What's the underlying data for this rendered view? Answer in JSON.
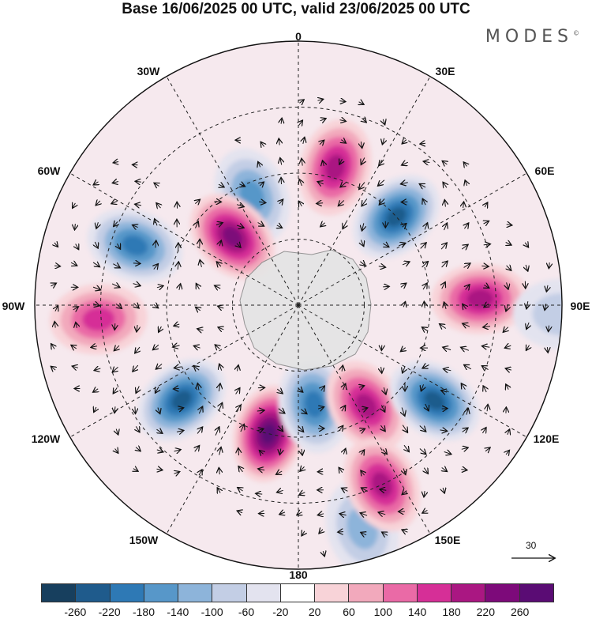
{
  "title": "Base 16/06/2025 00 UTC, valid 23/06/2025 00 UTC",
  "brand": "MODES",
  "brand_mark": "©",
  "longitude_labels": [
    "0",
    "30E",
    "60E",
    "90E",
    "120E",
    "150E",
    "180",
    "150W",
    "120W",
    "90W",
    "60W",
    "30W"
  ],
  "reference_vector_label": "30",
  "colorbar": {
    "ticks": [
      "-260",
      "-220",
      "-180",
      "-140",
      "-100",
      "-60",
      "-20",
      "20",
      "60",
      "100",
      "140",
      "180",
      "220",
      "260"
    ],
    "colors": [
      "#173f5e",
      "#1f5b8c",
      "#2e79b5",
      "#5797c9",
      "#8db4da",
      "#c3cee5",
      "#e3e3ef",
      "#ffffff",
      "#f8d3d8",
      "#f2a9bc",
      "#ea6aa6",
      "#d62f97",
      "#aa1782",
      "#7d0a7a",
      "#5a0c74"
    ]
  },
  "anomalies": [
    {
      "lon": 312,
      "r": 0.5,
      "value": -240
    },
    {
      "lon": 345,
      "r": 0.54,
      "value": 190
    },
    {
      "lon": 23,
      "r": 0.45,
      "value": -160
    },
    {
      "lon": 44,
      "r": 0.36,
      "value": 230
    },
    {
      "lon": 70,
      "r": 0.66,
      "value": -200
    },
    {
      "lon": 94,
      "r": 0.76,
      "value": 170
    },
    {
      "lon": 129,
      "r": 0.57,
      "value": -230
    },
    {
      "lon": 167,
      "r": 0.5,
      "value": 260
    },
    {
      "lon": 189,
      "r": 0.38,
      "value": -200
    },
    {
      "lon": 214,
      "r": 0.46,
      "value": 180
    },
    {
      "lon": 235,
      "r": 0.63,
      "value": -250
    },
    {
      "lon": 272,
      "r": 0.69,
      "value": 210
    },
    {
      "lon": 196,
      "r": 0.88,
      "value": -130
    },
    {
      "lon": 205,
      "r": 0.75,
      "value": 180
    },
    {
      "lon": 268,
      "r": 1.0,
      "value": -70
    }
  ]
}
